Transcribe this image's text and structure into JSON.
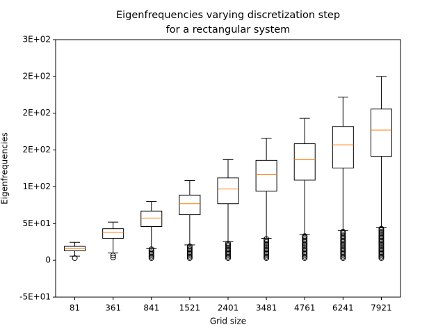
{
  "chart_data": {
    "type": "box",
    "title": [
      "Eigenfrequencies varying discretization step",
      "for a rectangular system"
    ],
    "xlabel": "Grid size",
    "ylabel": "Eigenfrequencies",
    "categories": [
      "81",
      "361",
      "841",
      "1521",
      "2401",
      "3481",
      "4761",
      "6241",
      "7921"
    ],
    "boxes": [
      {
        "whislo": 5.7,
        "q1": 13,
        "med": 16,
        "q3": 19,
        "whishi": 24.5,
        "fliers": [
          3
        ]
      },
      {
        "whislo": 10,
        "q1": 30,
        "med": 38,
        "q3": 43,
        "whishi": 52,
        "fliers": [
          3.8,
          6.6
        ]
      },
      {
        "whislo": 16,
        "q1": 46,
        "med": 57.5,
        "q3": 67,
        "whishi": 80,
        "fliers": [
          3,
          5,
          7,
          9,
          11,
          13,
          15
        ]
      },
      {
        "whislo": 21,
        "q1": 62,
        "med": 77,
        "q3": 88.7,
        "whishi": 108.5,
        "fliers": [
          3,
          5,
          7,
          9,
          11,
          13,
          15,
          17,
          19
        ]
      },
      {
        "whislo": 25.5,
        "q1": 77,
        "med": 97,
        "q3": 112,
        "whishi": 137,
        "fliers": [
          3,
          5,
          7,
          9,
          11,
          13,
          15,
          17,
          19,
          21,
          23
        ]
      },
      {
        "whislo": 30,
        "q1": 94,
        "med": 117,
        "q3": 136,
        "whishi": 166,
        "fliers": [
          3,
          5,
          7,
          9,
          11,
          13,
          15,
          17,
          19,
          21,
          23,
          25,
          27,
          29
        ]
      },
      {
        "whislo": 35,
        "q1": 109,
        "med": 137,
        "q3": 158.5,
        "whishi": 193,
        "fliers": [
          3,
          5,
          7,
          9,
          11,
          13,
          15,
          17,
          19,
          21,
          23,
          25,
          27,
          29,
          31,
          33
        ]
      },
      {
        "whislo": 40.5,
        "q1": 125.5,
        "med": 157,
        "q3": 182,
        "whishi": 222,
        "fliers": [
          3,
          5,
          7,
          9,
          11,
          13,
          15,
          17,
          19,
          21,
          23,
          25,
          27,
          29,
          31,
          33,
          35,
          37,
          39
        ]
      },
      {
        "whislo": 45,
        "q1": 141.5,
        "med": 177,
        "q3": 205.7,
        "whishi": 250,
        "fliers": [
          3,
          5,
          7,
          9,
          11,
          13,
          15,
          17,
          19,
          21,
          23,
          25,
          27,
          29,
          31,
          33,
          35,
          37,
          39,
          41,
          43
        ]
      }
    ],
    "box_color": "#000000",
    "median_color": "#ff7f0e",
    "ylim": [
      -50,
      300
    ],
    "yticks": [
      {
        "value": -50,
        "label": "-5E+01"
      },
      0,
      {
        "value": 50,
        "label": "5E+01"
      },
      {
        "value": 100,
        "label": "1E+02"
      },
      {
        "value": 150,
        "label": "2E+02"
      },
      {
        "value": 200,
        "label": "2E+02"
      },
      {
        "value": 250,
        "label": "2E+02"
      },
      {
        "value": 300,
        "label": "3E+02"
      }
    ],
    "grid": false
  }
}
